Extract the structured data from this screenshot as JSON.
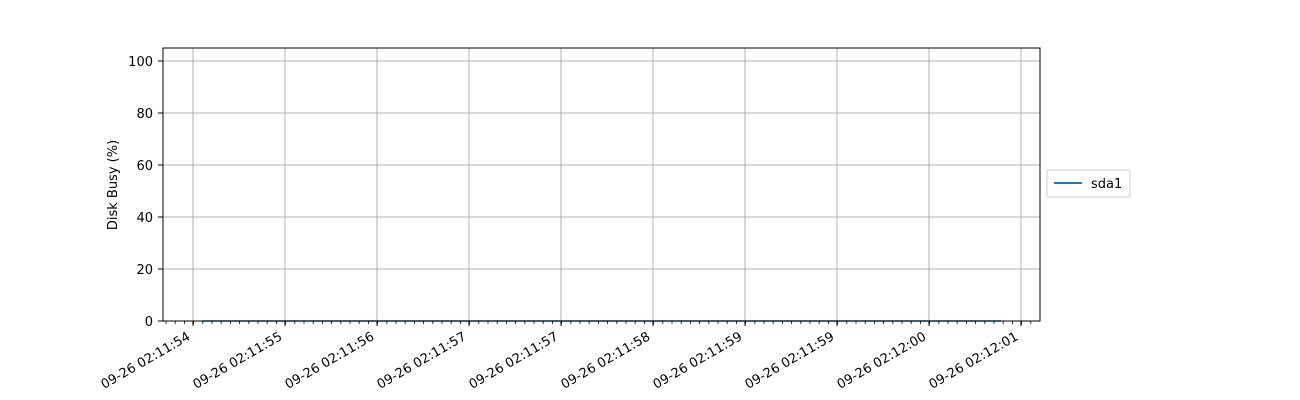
{
  "chart_data": {
    "type": "line",
    "title": "",
    "xlabel": "",
    "ylabel": "Disk Busy (%)",
    "ylim": [
      0,
      105
    ],
    "y_ticks": [
      0,
      20,
      40,
      60,
      80,
      100
    ],
    "x_tick_labels": [
      "09-26 02:11:54",
      "09-26 02:11:55",
      "09-26 02:11:56",
      "09-26 02:11:57",
      "09-26 02:11:57",
      "09-26 02:11:58",
      "09-26 02:11:59",
      "09-26 02:11:59",
      "09-26 02:12:00",
      "09-26 02:12:01"
    ],
    "grid": true,
    "legend_position": "right",
    "series": [
      {
        "name": "sda1",
        "color": "#1f77b4",
        "x_range": [
          "09-26 02:11:54",
          "09-26 02:12:01"
        ],
        "values": [
          0,
          0
        ]
      }
    ]
  }
}
